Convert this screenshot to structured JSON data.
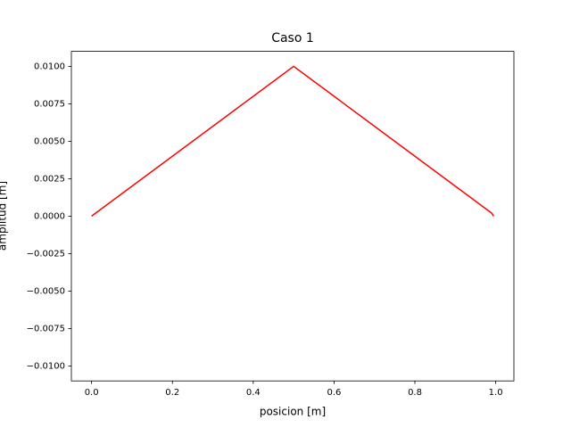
{
  "chart_data": {
    "type": "line",
    "title": "Caso 1",
    "x_label": "posicion [m]",
    "y_label": "amplitud [m]",
    "x": [
      0,
      0.5,
      0.99,
      0.995
    ],
    "series": [
      {
        "color": "#ff0000",
        "values": [
          0,
          0.01,
          0.0002,
          0
        ]
      }
    ],
    "xlim": [
      -0.05,
      1.045
    ],
    "ylim": [
      -0.011,
      0.011
    ],
    "xticks": [
      {
        "value": 0,
        "label": "0.0"
      },
      {
        "value": 0.2,
        "label": "0.2"
      },
      {
        "value": 0.4,
        "label": "0.4"
      },
      {
        "value": 0.6,
        "label": "0.6"
      },
      {
        "value": 0.8,
        "label": "0.8"
      },
      {
        "value": 1,
        "label": "1.0"
      }
    ],
    "yticks": [
      {
        "value": -0.01,
        "label": "−0.0100"
      },
      {
        "value": -0.0075,
        "label": "−0.0075"
      },
      {
        "value": -0.005,
        "label": "−0.0050"
      },
      {
        "value": -0.0025,
        "label": "−0.0025"
      },
      {
        "value": 0,
        "label": "0.0000"
      },
      {
        "value": 0.0025,
        "label": "0.0025"
      },
      {
        "value": 0.005,
        "label": "0.0050"
      },
      {
        "value": 0.0075,
        "label": "0.0075"
      },
      {
        "value": 0.01,
        "label": "0.0100"
      }
    ],
    "grid": false
  }
}
